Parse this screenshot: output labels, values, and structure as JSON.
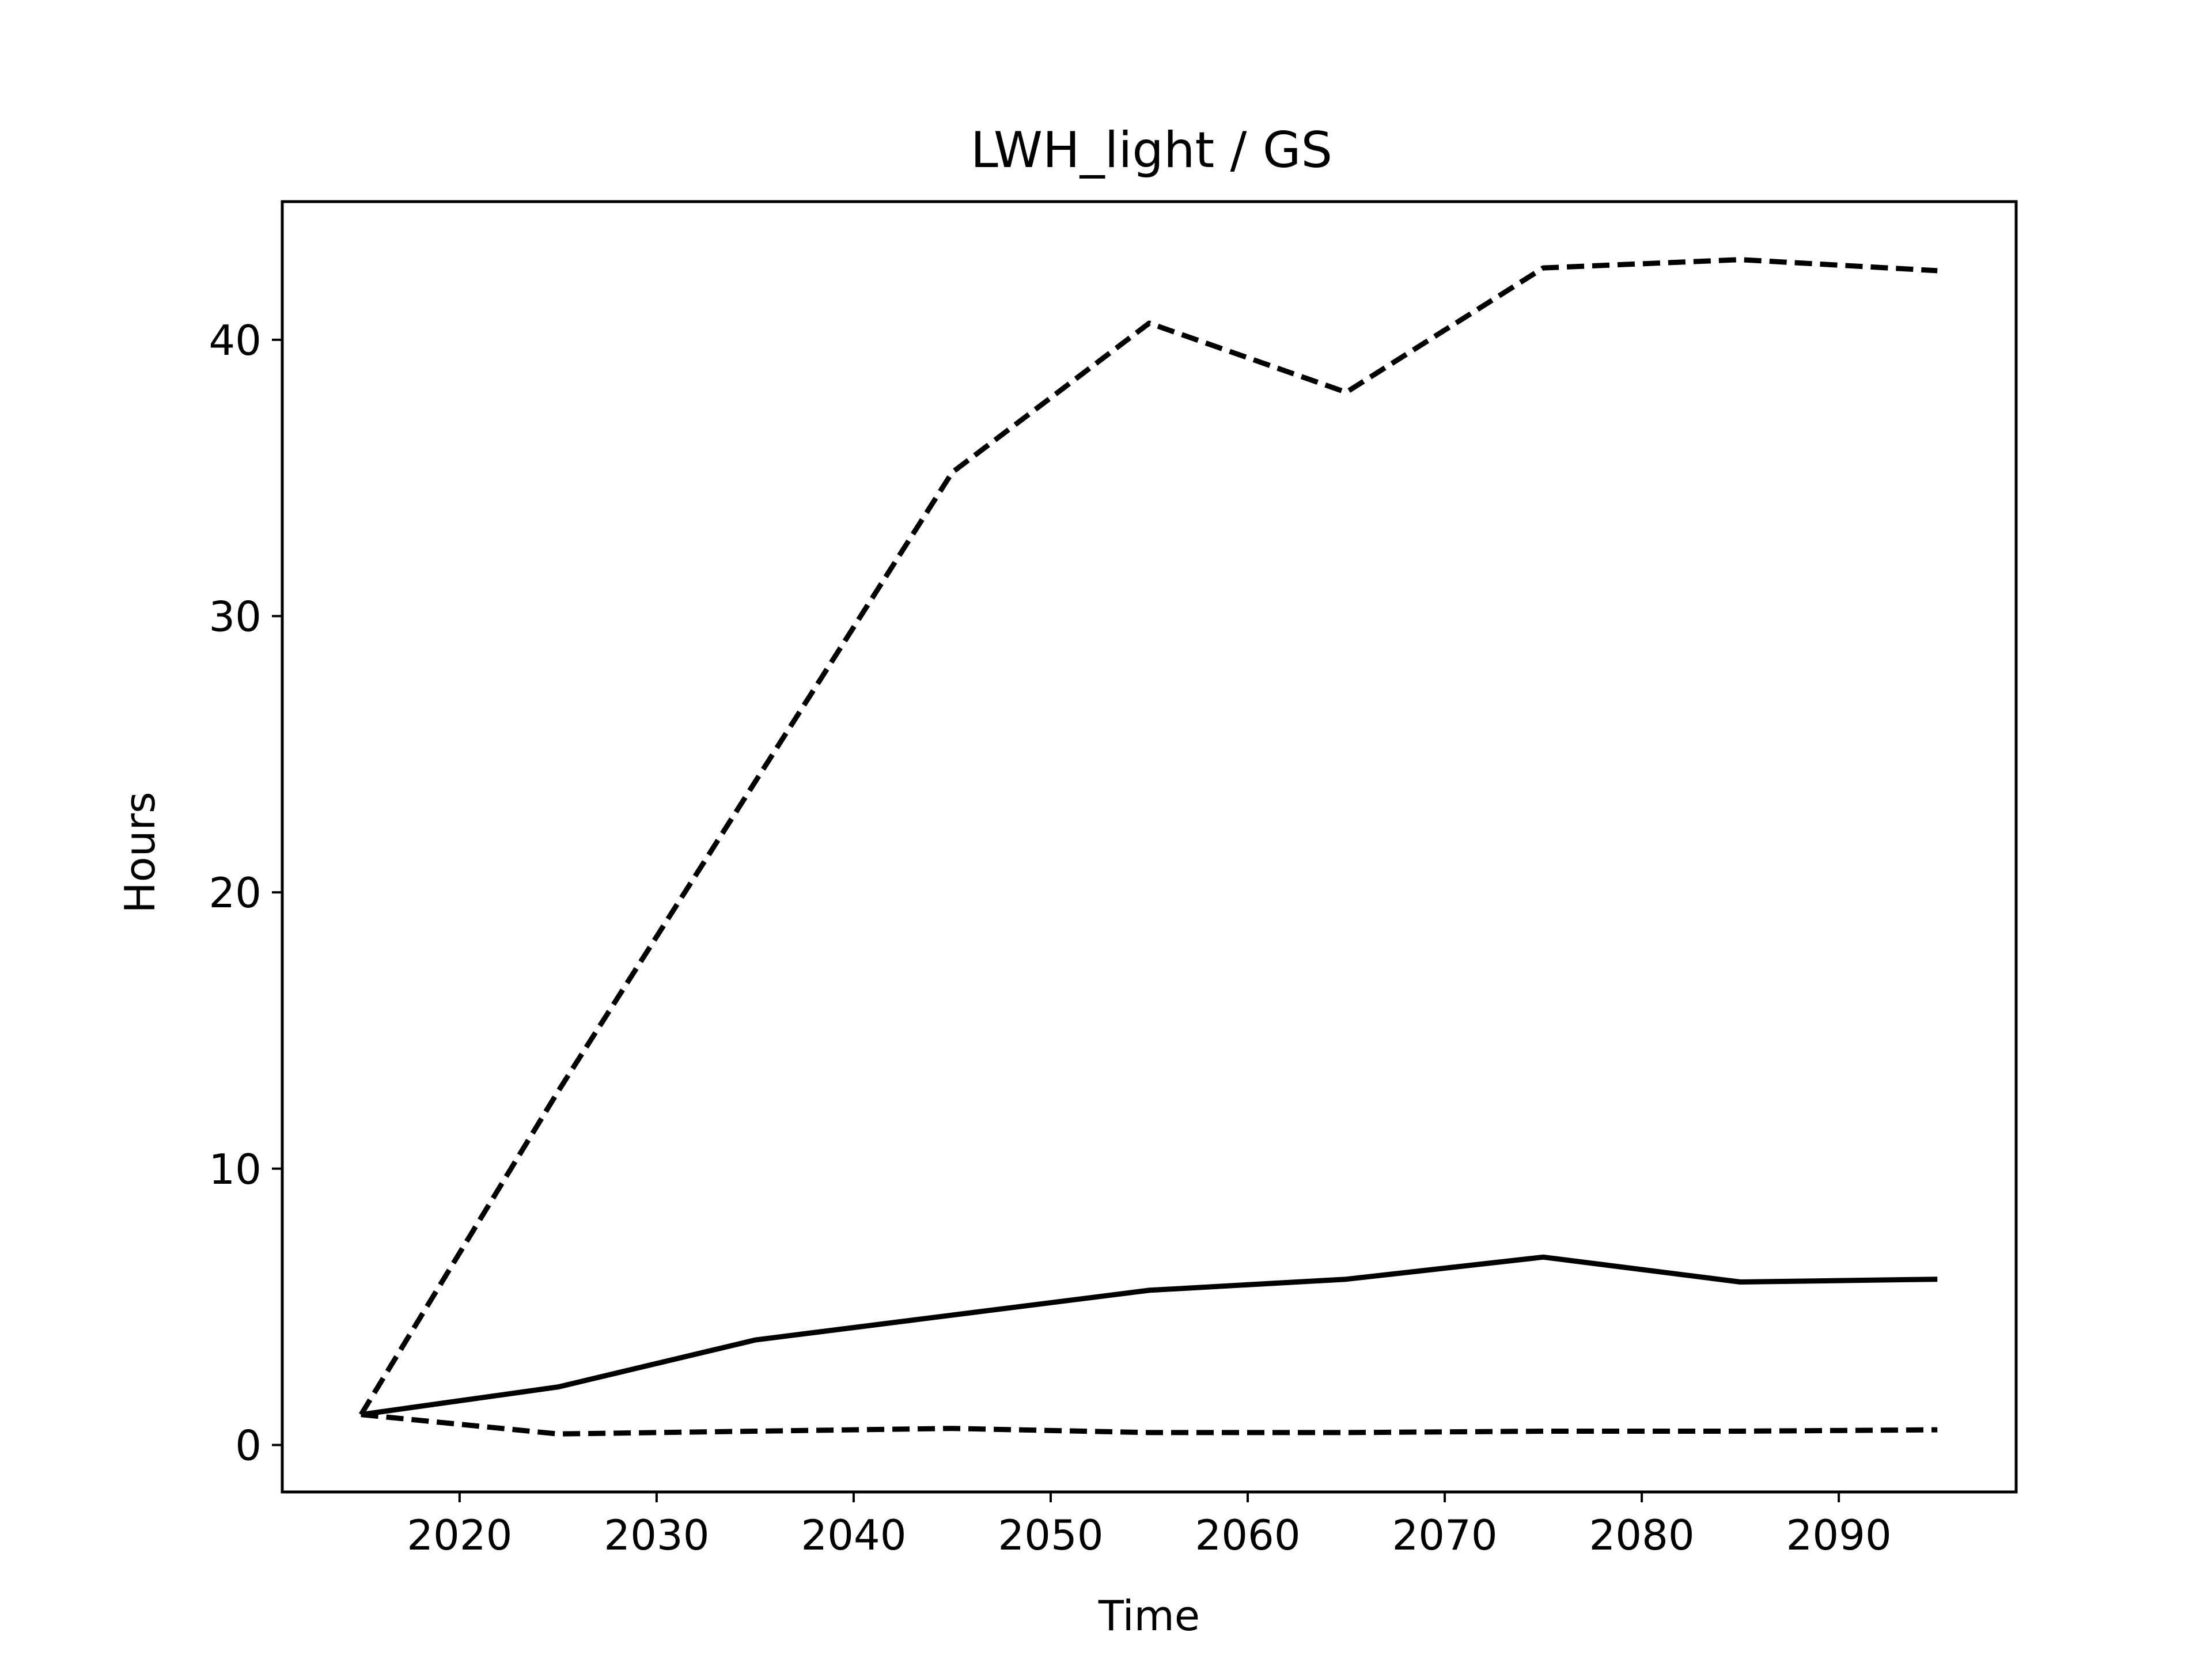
{
  "chart_data": {
    "type": "line",
    "title": "LWH_light / GS",
    "xlabel": "Time",
    "ylabel": "Hours",
    "x": [
      2015,
      2025,
      2035,
      2045,
      2055,
      2065,
      2075,
      2085,
      2095
    ],
    "xlim": [
      2011,
      2099
    ],
    "ylim": [
      -1.7,
      45
    ],
    "xticks": [
      2020,
      2030,
      2040,
      2050,
      2060,
      2070,
      2080,
      2090
    ],
    "yticks": [
      0,
      10,
      20,
      30,
      40
    ],
    "grid": false,
    "legend": "none",
    "series": [
      {
        "style": "dashed",
        "color": "#000000",
        "values": [
          1.1,
          12.8,
          24.0,
          35.2,
          40.6,
          38.1,
          42.6,
          42.9,
          42.5
        ]
      },
      {
        "style": "solid",
        "color": "#000000",
        "values": [
          1.1,
          2.1,
          3.8,
          4.7,
          5.6,
          6.0,
          6.8,
          5.9,
          6.0
        ]
      },
      {
        "style": "dashed",
        "color": "#000000",
        "values": [
          1.1,
          0.4,
          0.5,
          0.6,
          0.45,
          0.45,
          0.5,
          0.5,
          0.55
        ]
      }
    ]
  }
}
